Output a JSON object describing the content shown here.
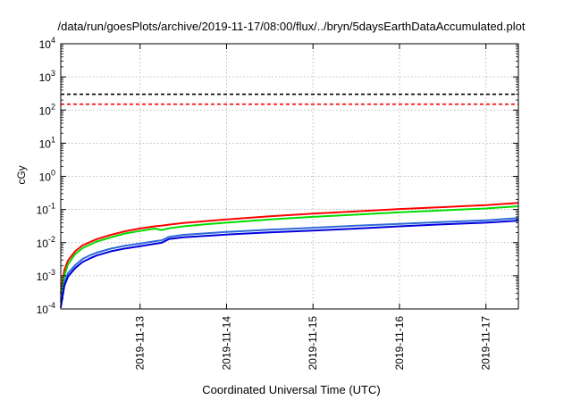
{
  "chart_data": {
    "type": "line",
    "title": "/data/run/goesPlots/archive/2019-11-17/08:00/flux/../bryn/5daysEarthDataAccumulated.plot",
    "xlabel": "Coordinated Universal Time (UTC)",
    "ylabel": "cGy",
    "x_scale": "time",
    "y_scale": "log",
    "xlim": [
      "2019-11-12T02:00",
      "2019-11-17T09:00"
    ],
    "ylim": [
      0.0001,
      10000
    ],
    "x_ticks": [
      "2019-11-13",
      "2019-11-14",
      "2019-11-15",
      "2019-11-16",
      "2019-11-17"
    ],
    "y_ticks": [
      {
        "value": 0.0001,
        "base": "10",
        "exp": "-4"
      },
      {
        "value": 0.001,
        "base": "10",
        "exp": "-3"
      },
      {
        "value": 0.01,
        "base": "10",
        "exp": "-2"
      },
      {
        "value": 0.1,
        "base": "10",
        "exp": "-1"
      },
      {
        "value": 1,
        "base": "10",
        "exp": "0"
      },
      {
        "value": 10,
        "base": "10",
        "exp": "1"
      },
      {
        "value": 100,
        "base": "10",
        "exp": "2"
      },
      {
        "value": 1000,
        "base": "10",
        "exp": "3"
      },
      {
        "value": 10000,
        "base": "10",
        "exp": "4"
      }
    ],
    "grid": true,
    "legend": "none",
    "threshold_lines": [
      {
        "value": 300,
        "color": "#000000"
      },
      {
        "value": 150,
        "color": "#ff0000"
      }
    ],
    "series": [
      {
        "color": "#ff0000",
        "points": [
          [
            "2019-11-12T02:00",
            0.0003
          ],
          [
            "2019-11-12T03:00",
            0.0015
          ],
          [
            "2019-11-12T04:00",
            0.0029
          ],
          [
            "2019-11-12T06:00",
            0.0055
          ],
          [
            "2019-11-12T08:00",
            0.0082
          ],
          [
            "2019-11-12T12:00",
            0.0128
          ],
          [
            "2019-11-12T16:00",
            0.0172
          ],
          [
            "2019-11-12T20:00",
            0.0222
          ],
          [
            "2019-11-13T00:00",
            0.0268
          ],
          [
            "2019-11-13T04:00",
            0.031
          ],
          [
            "2019-11-13T06:00",
            0.0325
          ],
          [
            "2019-11-13T08:00",
            0.035
          ],
          [
            "2019-11-13T12:00",
            0.039
          ],
          [
            "2019-11-13T18:00",
            0.0445
          ],
          [
            "2019-11-14T00:00",
            0.05
          ],
          [
            "2019-11-14T12:00",
            0.062
          ],
          [
            "2019-11-15T00:00",
            0.075
          ],
          [
            "2019-11-15T12:00",
            0.088
          ],
          [
            "2019-11-16T00:00",
            0.103
          ],
          [
            "2019-11-16T12:00",
            0.118
          ],
          [
            "2019-11-17T00:00",
            0.135
          ],
          [
            "2019-11-17T09:00",
            0.158
          ]
        ]
      },
      {
        "color": "#00dd00",
        "points": [
          [
            "2019-11-12T02:00",
            0.0002
          ],
          [
            "2019-11-12T03:00",
            0.001
          ],
          [
            "2019-11-12T04:00",
            0.0022
          ],
          [
            "2019-11-12T06:00",
            0.0045
          ],
          [
            "2019-11-12T08:00",
            0.0068
          ],
          [
            "2019-11-12T12:00",
            0.0108
          ],
          [
            "2019-11-12T16:00",
            0.0145
          ],
          [
            "2019-11-12T20:00",
            0.019
          ],
          [
            "2019-11-13T00:00",
            0.0225
          ],
          [
            "2019-11-13T04:00",
            0.0265
          ],
          [
            "2019-11-13T06:00",
            0.024
          ],
          [
            "2019-11-13T08:00",
            0.027
          ],
          [
            "2019-11-13T12:00",
            0.031
          ],
          [
            "2019-11-13T18:00",
            0.0355
          ],
          [
            "2019-11-14T00:00",
            0.04
          ],
          [
            "2019-11-14T12:00",
            0.05
          ],
          [
            "2019-11-15T00:00",
            0.06
          ],
          [
            "2019-11-15T12:00",
            0.07
          ],
          [
            "2019-11-16T00:00",
            0.082
          ],
          [
            "2019-11-16T12:00",
            0.094
          ],
          [
            "2019-11-17T00:00",
            0.107
          ],
          [
            "2019-11-17T09:00",
            0.125
          ]
        ]
      },
      {
        "color": "#2e6bd6",
        "points": [
          [
            "2019-11-12T02:00",
            0.00016
          ],
          [
            "2019-11-12T03:00",
            0.00062
          ],
          [
            "2019-11-12T04:00",
            0.0012
          ],
          [
            "2019-11-12T06:00",
            0.0021
          ],
          [
            "2019-11-12T08:00",
            0.0032
          ],
          [
            "2019-11-12T10:00",
            0.0041
          ],
          [
            "2019-11-12T12:00",
            0.005
          ],
          [
            "2019-11-12T16:00",
            0.0066
          ],
          [
            "2019-11-12T20:00",
            0.0081
          ],
          [
            "2019-11-13T00:00",
            0.0094
          ],
          [
            "2019-11-13T04:00",
            0.011
          ],
          [
            "2019-11-13T06:00",
            0.0118
          ],
          [
            "2019-11-13T08:00",
            0.0148
          ],
          [
            "2019-11-13T12:00",
            0.0172
          ],
          [
            "2019-11-14T00:00",
            0.021
          ],
          [
            "2019-11-14T12:00",
            0.0245
          ],
          [
            "2019-11-15T00:00",
            0.028
          ],
          [
            "2019-11-15T12:00",
            0.0325
          ],
          [
            "2019-11-16T00:00",
            0.037
          ],
          [
            "2019-11-16T12:00",
            0.042
          ],
          [
            "2019-11-17T00:00",
            0.047
          ],
          [
            "2019-11-17T09:00",
            0.055
          ]
        ]
      },
      {
        "color": "#0000dd",
        "points": [
          [
            "2019-11-12T02:00",
            0.00011
          ],
          [
            "2019-11-12T03:00",
            0.0005
          ],
          [
            "2019-11-12T04:00",
            0.00095
          ],
          [
            "2019-11-12T06:00",
            0.0017
          ],
          [
            "2019-11-12T08:00",
            0.0026
          ],
          [
            "2019-11-12T10:00",
            0.0033
          ],
          [
            "2019-11-12T12:00",
            0.0041
          ],
          [
            "2019-11-12T16:00",
            0.0055
          ],
          [
            "2019-11-12T20:00",
            0.0067
          ],
          [
            "2019-11-13T00:00",
            0.0078
          ],
          [
            "2019-11-13T04:00",
            0.0092
          ],
          [
            "2019-11-13T06:00",
            0.0099
          ],
          [
            "2019-11-13T08:00",
            0.0128
          ],
          [
            "2019-11-13T12:00",
            0.0145
          ],
          [
            "2019-11-14T00:00",
            0.0175
          ],
          [
            "2019-11-14T12:00",
            0.0205
          ],
          [
            "2019-11-15T00:00",
            0.023
          ],
          [
            "2019-11-15T12:00",
            0.0265
          ],
          [
            "2019-11-16T00:00",
            0.031
          ],
          [
            "2019-11-16T12:00",
            0.0355
          ],
          [
            "2019-11-17T00:00",
            0.04
          ],
          [
            "2019-11-17T09:00",
            0.046
          ]
        ]
      }
    ]
  }
}
